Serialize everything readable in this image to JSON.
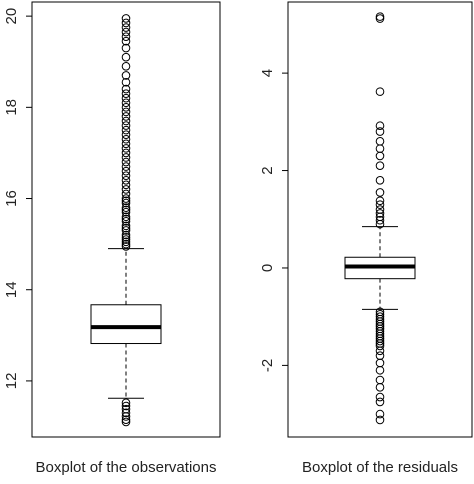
{
  "chart_data": [
    {
      "type": "box",
      "xlabel": "Boxplot of the observations",
      "ylim": [
        10.77,
        20.31
      ],
      "yticks": [
        12,
        14,
        16,
        18,
        20
      ],
      "whisker_low": 11.62,
      "q1": 12.82,
      "median": 13.18,
      "q3": 13.67,
      "whisker_high": 14.9,
      "outliers": [
        11.1,
        11.15,
        11.22,
        11.3,
        11.38,
        11.45,
        11.52,
        14.95,
        15.0,
        15.05,
        15.1,
        15.15,
        15.2,
        15.3,
        15.35,
        15.4,
        15.5,
        15.55,
        15.6,
        15.7,
        15.75,
        15.8,
        15.9,
        15.95,
        16.0,
        16.1,
        16.2,
        16.3,
        16.4,
        16.5,
        16.6,
        16.7,
        16.8,
        16.9,
        17.0,
        17.1,
        17.2,
        17.3,
        17.4,
        17.5,
        17.6,
        17.7,
        17.8,
        17.9,
        18.0,
        18.1,
        18.2,
        18.3,
        18.4,
        18.55,
        18.7,
        18.9,
        19.1,
        19.3,
        19.45,
        19.55,
        19.65,
        19.75,
        19.85,
        19.95
      ]
    },
    {
      "type": "box",
      "xlabel": "Boxplot of the residuals",
      "ylim": [
        -3.47,
        5.46
      ],
      "yticks": [
        -2,
        0,
        2,
        4
      ],
      "whisker_low": -0.85,
      "q1": -0.22,
      "median": 0.03,
      "q3": 0.22,
      "whisker_high": 0.85,
      "outliers": [
        0.9,
        0.98,
        1.05,
        1.12,
        1.2,
        1.3,
        1.38,
        1.55,
        1.8,
        2.1,
        2.3,
        2.45,
        2.6,
        2.8,
        2.92,
        3.62,
        5.12,
        5.16,
        -0.9,
        -0.95,
        -1.0,
        -1.05,
        -1.1,
        -1.15,
        -1.2,
        -1.25,
        -1.3,
        -1.35,
        -1.4,
        -1.45,
        -1.5,
        -1.55,
        -1.6,
        -1.7,
        -1.8,
        -1.95,
        -2.1,
        -2.3,
        -2.45,
        -2.65,
        -2.75,
        -3.0,
        -3.12
      ]
    }
  ]
}
